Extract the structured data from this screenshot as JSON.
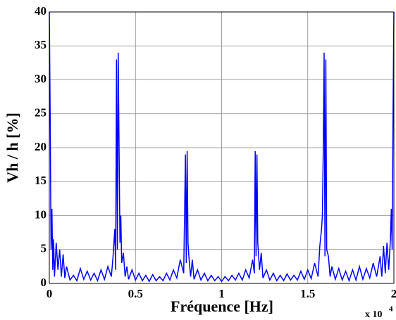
{
  "chart_data": {
    "type": "line",
    "x_label": "Fréquence [Hz]",
    "y_label": "Vh / h [%]",
    "x_multiplier": {
      "base": "x 10",
      "exponent": "4"
    },
    "x": [
      0,
      0.005,
      0.01,
      0.015,
      0.02,
      0.025,
      0.03,
      0.04,
      0.05,
      0.06,
      0.07,
      0.08,
      0.09,
      0.1,
      0.12,
      0.14,
      0.16,
      0.18,
      0.2,
      0.22,
      0.24,
      0.26,
      0.28,
      0.3,
      0.32,
      0.34,
      0.36,
      0.37,
      0.38,
      0.385,
      0.39,
      0.395,
      0.4,
      0.405,
      0.41,
      0.415,
      0.42,
      0.43,
      0.44,
      0.45,
      0.46,
      0.48,
      0.5,
      0.52,
      0.54,
      0.56,
      0.58,
      0.6,
      0.62,
      0.64,
      0.66,
      0.68,
      0.7,
      0.72,
      0.74,
      0.76,
      0.78,
      0.79,
      0.795,
      0.8,
      0.805,
      0.81,
      0.82,
      0.83,
      0.84,
      0.86,
      0.88,
      0.9,
      0.92,
      0.94,
      0.96,
      0.98,
      1,
      1.02,
      1.04,
      1.06,
      1.08,
      1.1,
      1.12,
      1.14,
      1.16,
      1.18,
      1.19,
      1.195,
      1.2,
      1.205,
      1.21,
      1.22,
      1.23,
      1.24,
      1.26,
      1.28,
      1.3,
      1.32,
      1.34,
      1.36,
      1.38,
      1.4,
      1.42,
      1.44,
      1.46,
      1.48,
      1.5,
      1.52,
      1.54,
      1.56,
      1.57,
      1.58,
      1.585,
      1.59,
      1.595,
      1.6,
      1.605,
      1.61,
      1.62,
      1.63,
      1.64,
      1.66,
      1.68,
      1.7,
      1.72,
      1.74,
      1.76,
      1.78,
      1.8,
      1.82,
      1.84,
      1.86,
      1.88,
      1.9,
      1.92,
      1.93,
      1.94,
      1.95,
      1.96,
      1.97,
      1.98,
      1.985,
      1.99,
      1.995,
      2
    ],
    "series": [
      {
        "color": "#0000ff",
        "values": [
          40,
          24.7,
          5,
          11,
          2,
          6.5,
          1,
          6,
          2,
          5,
          1,
          4.3,
          0.8,
          2.5,
          0.5,
          1.2,
          0.4,
          2.2,
          0.6,
          1.8,
          0.5,
          1.5,
          0.4,
          2,
          0.6,
          2.5,
          1,
          4,
          8,
          2,
          33,
          5,
          34,
          19.5,
          6,
          10,
          3,
          4.5,
          1,
          2.5,
          0.6,
          2,
          0.5,
          1.5,
          0.4,
          1.2,
          0.3,
          1.3,
          0.4,
          1,
          0.4,
          1.5,
          0.5,
          2,
          0.8,
          3.5,
          1.5,
          19,
          3,
          19.5,
          6,
          4,
          1,
          3.5,
          0.6,
          2,
          0.5,
          1.5,
          0.4,
          1.2,
          0.4,
          1,
          0.3,
          1,
          0.4,
          1.2,
          0.5,
          1.5,
          0.5,
          2,
          0.8,
          3.5,
          1.5,
          19.5,
          4,
          19,
          6,
          2,
          4.5,
          0.8,
          2,
          0.5,
          1.5,
          0.4,
          1.2,
          0.4,
          1.4,
          0.5,
          1.2,
          0.5,
          1.8,
          0.6,
          2,
          0.7,
          3,
          1,
          5.5,
          8,
          10,
          19.5,
          34,
          4,
          33,
          5,
          4,
          1,
          2.5,
          0.6,
          2.2,
          0.5,
          1.8,
          0.4,
          2,
          0.5,
          2.5,
          0.6,
          2.2,
          0.8,
          3,
          1,
          4,
          1,
          5.5,
          1.5,
          6,
          2,
          6.5,
          11,
          5,
          24.7,
          40
        ]
      }
    ],
    "xlim": [
      0,
      2
    ],
    "xticks": [
      0,
      0.5,
      1,
      1.5,
      2
    ],
    "ylim": [
      0,
      40
    ],
    "yticks": [
      0,
      5,
      10,
      15,
      20,
      25,
      30,
      35,
      40
    ],
    "grid": true
  }
}
